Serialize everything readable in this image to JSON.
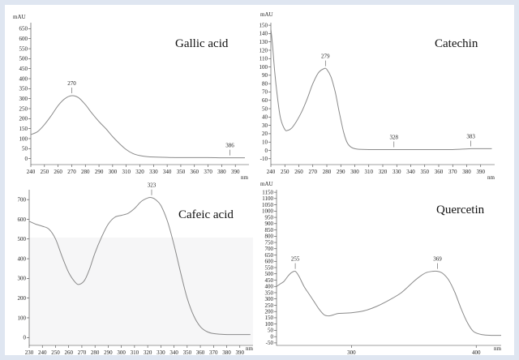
{
  "chart_data": [
    {
      "type": "line",
      "title": "Gallic acid",
      "ylabel": "mAU",
      "xlabel": "nm",
      "xlim": [
        240,
        400
      ],
      "ylim": [
        -30,
        680
      ],
      "xticks": [
        240,
        250,
        260,
        270,
        280,
        290,
        300,
        310,
        320,
        330,
        340,
        350,
        360,
        370,
        380,
        390
      ],
      "yticks": [
        0,
        50,
        100,
        150,
        200,
        250,
        300,
        350,
        400,
        450,
        500,
        550,
        600,
        650
      ],
      "color": "#8a8a8a",
      "series": [
        {
          "x": [
            240,
            245,
            250,
            255,
            260,
            265,
            270,
            275,
            280,
            285,
            290,
            295,
            300,
            305,
            310,
            315,
            320,
            325,
            330,
            340,
            350,
            360,
            370,
            380,
            386,
            390,
            397
          ],
          "y": [
            120,
            135,
            170,
            215,
            265,
            300,
            315,
            305,
            270,
            225,
            185,
            150,
            110,
            75,
            45,
            25,
            15,
            10,
            8,
            6,
            5,
            5,
            5,
            4,
            4,
            4,
            4
          ]
        }
      ],
      "peaks": [
        {
          "x": 270,
          "y": 315,
          "label": "270"
        },
        {
          "x": 386,
          "y": 4,
          "label": "386"
        }
      ]
    },
    {
      "type": "line",
      "title": "Catechin",
      "ylabel": "mAU",
      "xlabel": "nm",
      "xlim": [
        240,
        400
      ],
      "ylim": [
        -17,
        153
      ],
      "xticks": [
        240,
        250,
        260,
        270,
        280,
        290,
        300,
        310,
        320,
        330,
        340,
        350,
        360,
        370,
        380,
        390
      ],
      "yticks": [
        -10,
        0,
        10,
        20,
        30,
        40,
        50,
        60,
        70,
        80,
        90,
        100,
        110,
        120,
        130,
        140,
        150
      ],
      "color": "#8a8a8a",
      "series": [
        {
          "x": [
            240,
            241,
            242,
            243,
            245,
            247,
            250,
            252,
            255,
            258,
            262,
            266,
            270,
            274,
            278,
            280,
            283,
            286,
            289,
            292,
            295,
            300,
            310,
            320,
            328,
            340,
            350,
            360,
            370,
            383,
            390,
            398
          ],
          "y": [
            145,
            130,
            110,
            90,
            60,
            38,
            25,
            24,
            27,
            34,
            46,
            62,
            80,
            93,
            98,
            97,
            88,
            70,
            45,
            22,
            8,
            2,
            1,
            1,
            1,
            1,
            1,
            1,
            1,
            2,
            2,
            2
          ]
        }
      ],
      "peaks": [
        {
          "x": 279,
          "y": 98,
          "label": "279"
        },
        {
          "x": 328,
          "y": 1,
          "label": "328"
        },
        {
          "x": 383,
          "y": 2,
          "label": "383"
        }
      ]
    },
    {
      "type": "line",
      "title": "Cafeic acid",
      "xlabel": "nm",
      "xlim": [
        230,
        400
      ],
      "ylim": [
        -40,
        750
      ],
      "xticks": [
        230,
        240,
        250,
        260,
        270,
        280,
        290,
        300,
        310,
        320,
        330,
        340,
        350,
        360,
        370,
        380,
        390
      ],
      "yticks": [
        0,
        100,
        200,
        300,
        400,
        500,
        600,
        700
      ],
      "color": "#8a8a8a",
      "series": [
        {
          "x": [
            230,
            235,
            240,
            245,
            250,
            255,
            260,
            265,
            268,
            272,
            276,
            280,
            285,
            290,
            295,
            300,
            305,
            310,
            315,
            320,
            323,
            326,
            330,
            335,
            340,
            345,
            350,
            355,
            360,
            365,
            370,
            380,
            390,
            398
          ],
          "y": [
            590,
            575,
            565,
            550,
            500,
            410,
            330,
            280,
            270,
            290,
            350,
            430,
            510,
            575,
            610,
            620,
            630,
            655,
            690,
            708,
            710,
            700,
            670,
            590,
            470,
            330,
            200,
            110,
            55,
            30,
            20,
            15,
            15,
            15
          ]
        }
      ],
      "peaks": [
        {
          "x": 323,
          "y": 710,
          "label": "323"
        }
      ]
    },
    {
      "type": "line",
      "title": "Quercetin",
      "ylabel": "mAU",
      "xlabel": "nm",
      "xlim": [
        240,
        420
      ],
      "ylim": [
        -70,
        1170
      ],
      "xticks": [
        300,
        400
      ],
      "yticks": [
        -50,
        0,
        50,
        100,
        150,
        200,
        250,
        300,
        350,
        400,
        450,
        500,
        550,
        600,
        650,
        700,
        750,
        800,
        850,
        900,
        950,
        1000,
        1050,
        1100,
        1150
      ],
      "color": "#8a8a8a",
      "series": [
        {
          "x": [
            240,
            243,
            246,
            249,
            252,
            255,
            258,
            262,
            266,
            270,
            274,
            278,
            282,
            286,
            290,
            300,
            310,
            320,
            330,
            340,
            350,
            355,
            360,
            365,
            369,
            373,
            378,
            383,
            388,
            393,
            398,
            405,
            412,
            420
          ],
          "y": [
            400,
            420,
            440,
            480,
            510,
            520,
            480,
            400,
            340,
            280,
            220,
            175,
            165,
            175,
            185,
            190,
            205,
            240,
            290,
            350,
            440,
            480,
            510,
            520,
            520,
            505,
            450,
            350,
            220,
            110,
            40,
            15,
            10,
            10
          ]
        }
      ],
      "peaks": [
        {
          "x": 255,
          "y": 520,
          "label": "255"
        },
        {
          "x": 369,
          "y": 520,
          "label": "369"
        }
      ]
    }
  ],
  "panels": {
    "p0": {
      "title": "Gallic acid",
      "ylabel": "mAU",
      "xlabel": "nm"
    },
    "p1": {
      "title": "Catechin",
      "ylabel": "mAU",
      "xlabel": "nm"
    },
    "p2": {
      "title": "Cafeic acid",
      "xlabel": "nm"
    },
    "p3": {
      "title": "Quercetin",
      "ylabel": "mAU",
      "xlabel": "nm"
    }
  }
}
